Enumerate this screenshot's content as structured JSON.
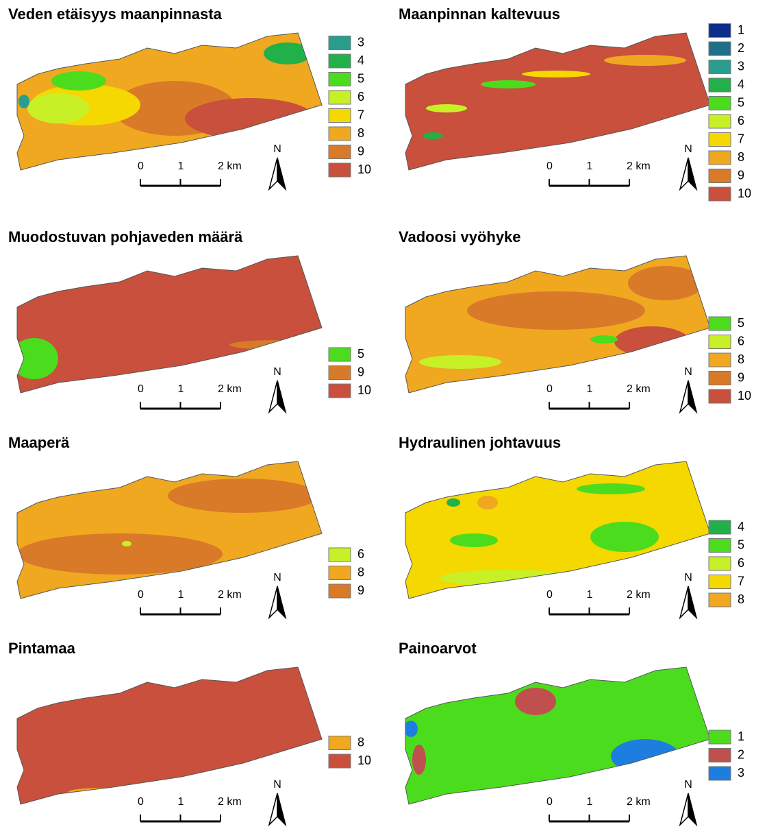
{
  "panels": [
    {
      "title": "Veden etäisyys maanpinnasta",
      "legend": [
        {
          "label": 3,
          "color": "#2a9d8f"
        },
        {
          "label": 4,
          "color": "#22b04a"
        },
        {
          "label": 5,
          "color": "#4cdc1e"
        },
        {
          "label": 6,
          "color": "#c8f026"
        },
        {
          "label": 7,
          "color": "#f5d800"
        },
        {
          "label": 8,
          "color": "#f0a820"
        },
        {
          "label": 9,
          "color": "#d97a28"
        },
        {
          "label": 10,
          "color": "#c8503c"
        }
      ],
      "scale": [
        "0",
        "1",
        "2 km"
      ],
      "north": "N"
    },
    {
      "title": "Maanpinnan kaltevuus",
      "legend": [
        {
          "label": 1,
          "color": "#0d2d8a"
        },
        {
          "label": 2,
          "color": "#1f6f8b"
        },
        {
          "label": 3,
          "color": "#2a9d8f"
        },
        {
          "label": 4,
          "color": "#22b04a"
        },
        {
          "label": 5,
          "color": "#4cdc1e"
        },
        {
          "label": 6,
          "color": "#c8f026"
        },
        {
          "label": 7,
          "color": "#f5d800"
        },
        {
          "label": 8,
          "color": "#f0a820"
        },
        {
          "label": 9,
          "color": "#d97a28"
        },
        {
          "label": 10,
          "color": "#c8503c"
        }
      ],
      "scale": [
        "0",
        "1",
        "2 km"
      ],
      "north": "N"
    },
    {
      "title": "Muodostuvan pohjaveden määrä",
      "legend": [
        {
          "label": 5,
          "color": "#4cdc1e"
        },
        {
          "label": 9,
          "color": "#d97a28"
        },
        {
          "label": 10,
          "color": "#c8503c"
        }
      ],
      "scale": [
        "0",
        "1",
        "2 km"
      ],
      "north": "N"
    },
    {
      "title": "Vadoosi vyöhyke",
      "legend": [
        {
          "label": 5,
          "color": "#4cdc1e"
        },
        {
          "label": 6,
          "color": "#c8f026"
        },
        {
          "label": 8,
          "color": "#f0a820"
        },
        {
          "label": 9,
          "color": "#d97a28"
        },
        {
          "label": 10,
          "color": "#c8503c"
        }
      ],
      "scale": [
        "0",
        "1",
        "2 km"
      ],
      "north": "N"
    },
    {
      "title": "Maaperä",
      "legend": [
        {
          "label": 6,
          "color": "#c8f026"
        },
        {
          "label": 8,
          "color": "#f0a820"
        },
        {
          "label": 9,
          "color": "#d97a28"
        }
      ],
      "scale": [
        "0",
        "1",
        "2 km"
      ],
      "north": "N"
    },
    {
      "title": "Hydraulinen johtavuus",
      "legend": [
        {
          "label": 4,
          "color": "#22b04a"
        },
        {
          "label": 5,
          "color": "#4cdc1e"
        },
        {
          "label": 6,
          "color": "#c8f026"
        },
        {
          "label": 7,
          "color": "#f5d800"
        },
        {
          "label": 8,
          "color": "#f0a820"
        }
      ],
      "scale": [
        "0",
        "1",
        "2 km"
      ],
      "north": "N"
    },
    {
      "title": "Pintamaa",
      "legend": [
        {
          "label": 8,
          "color": "#f0a820"
        },
        {
          "label": 10,
          "color": "#c8503c"
        }
      ],
      "scale": [
        "0",
        "1",
        "2 km"
      ],
      "north": "N"
    },
    {
      "title": "Painoarvot",
      "legend": [
        {
          "label": 1,
          "color": "#4cdc1e"
        },
        {
          "label": 2,
          "color": "#c0504d"
        },
        {
          "label": 3,
          "color": "#1e7ee0"
        }
      ],
      "scale": [
        "0",
        "1",
        "2 km"
      ],
      "north": "N"
    }
  ]
}
